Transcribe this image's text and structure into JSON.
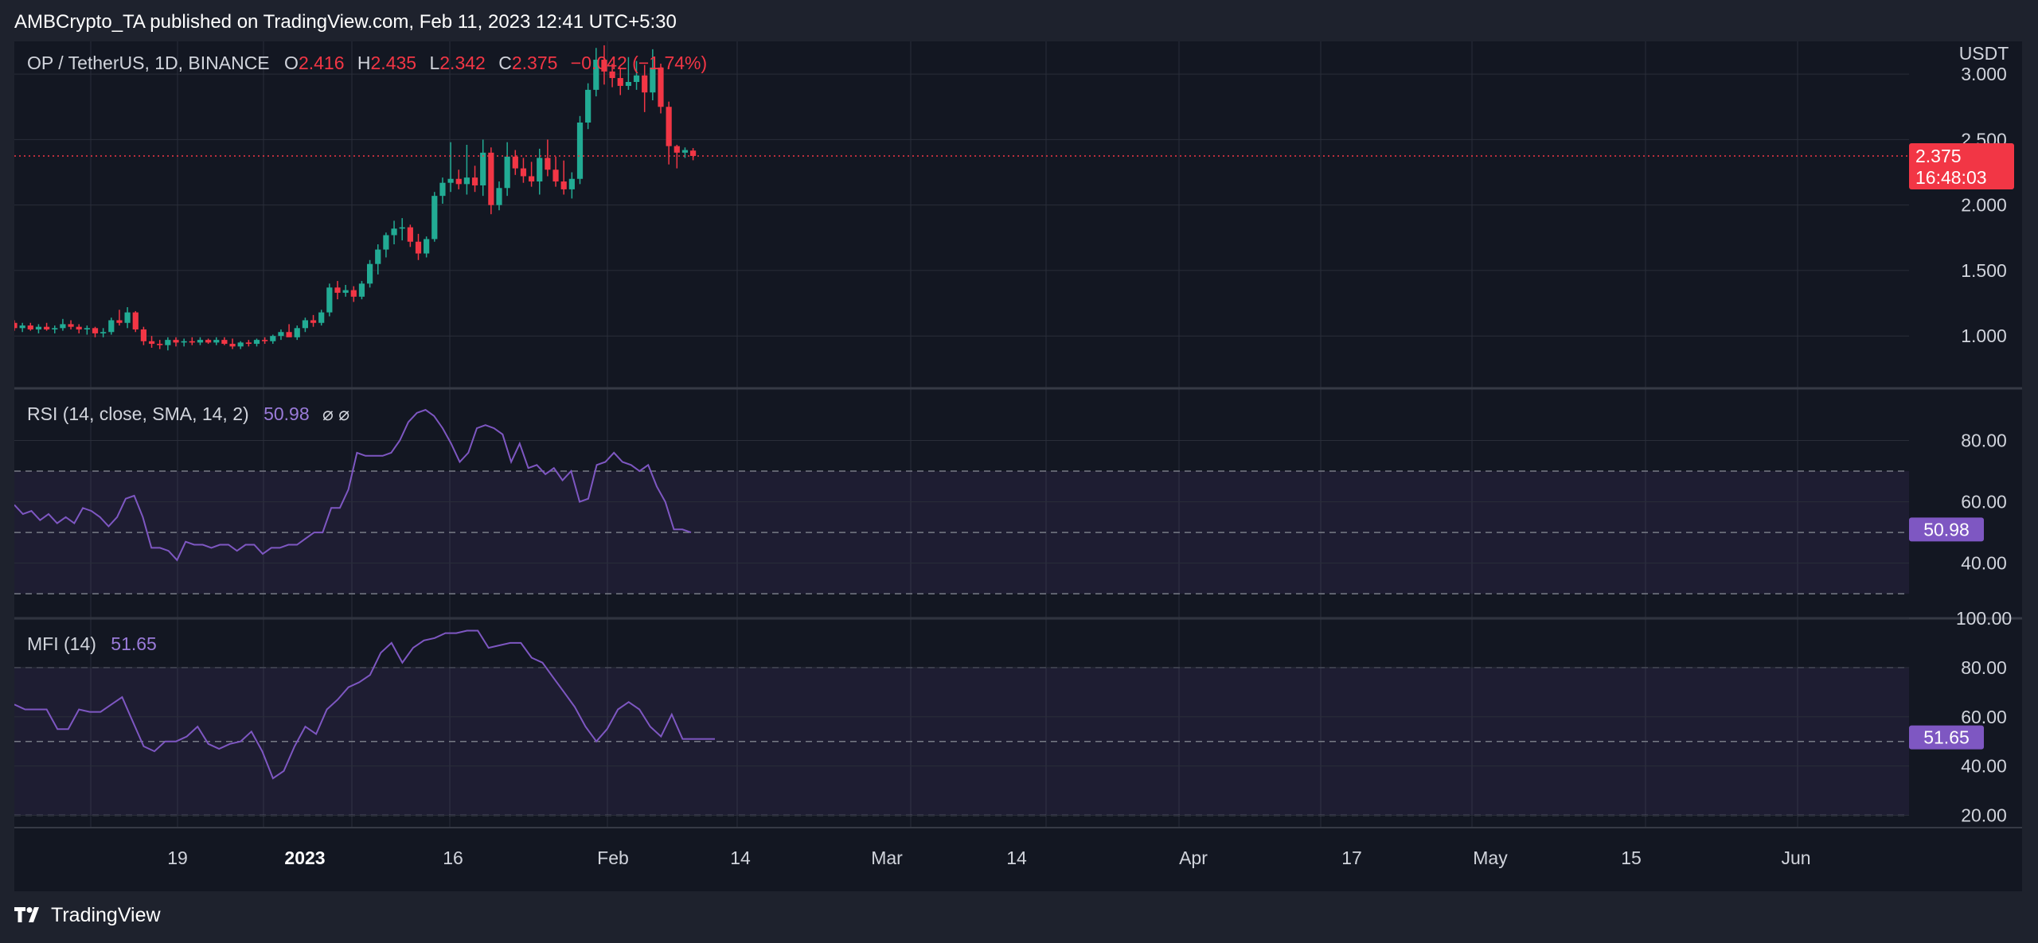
{
  "header": {
    "text": "AMBCrypto_TA published on TradingView.com, Feb 11, 2023 12:41 UTC+5:30"
  },
  "footer": {
    "brand": "TradingView"
  },
  "colors": {
    "up": "#22ab94",
    "down": "#f23645",
    "indicator": "#7e57c2",
    "background": "#131722",
    "grid": "#2a2e39"
  },
  "legend": {
    "symbol": "OP / TetherUS, 1D, BINANCE",
    "o_label": "O",
    "o_value": "2.416",
    "h_label": "H",
    "h_value": "2.435",
    "l_label": "L",
    "l_value": "2.342",
    "c_label": "C",
    "c_value": "2.375",
    "change": "−0.042 (−1.74%)"
  },
  "price_axis": {
    "currency": "USDT",
    "last_price": "2.375",
    "countdown": "16:48:03"
  },
  "rsi_legend": {
    "label": "RSI (14, close, SMA, 14, 2)",
    "value": "50.98",
    "icons": "⌀  ⌀"
  },
  "mfi_legend": {
    "label": "MFI (14)",
    "value": "51.65"
  },
  "chart_data": [
    {
      "type": "candlestick",
      "title": "OP / TetherUS, 1D, BINANCE",
      "ylabel": "USDT",
      "ylim": [
        0.6,
        3.25
      ],
      "yticks": [
        "1.000",
        "1.500",
        "2.000",
        "2.500",
        "3.000"
      ],
      "xticks": [
        "19",
        "2023",
        "16",
        "Feb",
        "14",
        "Mar",
        "14",
        "Apr",
        "17",
        "May",
        "15",
        "Jun"
      ],
      "ohlc": [
        [
          1.1,
          1.12,
          1.04,
          1.06
        ],
        [
          1.06,
          1.1,
          1.03,
          1.08
        ],
        [
          1.08,
          1.1,
          1.04,
          1.05
        ],
        [
          1.05,
          1.09,
          1.02,
          1.07
        ],
        [
          1.07,
          1.1,
          1.04,
          1.05
        ],
        [
          1.05,
          1.08,
          1.02,
          1.06
        ],
        [
          1.06,
          1.13,
          1.04,
          1.09
        ],
        [
          1.09,
          1.12,
          1.05,
          1.07
        ],
        [
          1.07,
          1.09,
          1.02,
          1.05
        ],
        [
          1.05,
          1.08,
          1.01,
          1.06
        ],
        [
          1.06,
          1.07,
          0.99,
          1.02
        ],
        [
          1.02,
          1.06,
          0.99,
          1.03
        ],
        [
          1.03,
          1.14,
          1.01,
          1.12
        ],
        [
          1.12,
          1.2,
          1.08,
          1.1
        ],
        [
          1.1,
          1.22,
          1.06,
          1.18
        ],
        [
          1.18,
          1.19,
          1.03,
          1.05
        ],
        [
          1.05,
          1.07,
          0.93,
          0.96
        ],
        [
          0.96,
          1.0,
          0.91,
          0.94
        ],
        [
          0.94,
          0.97,
          0.9,
          0.93
        ],
        [
          0.93,
          0.99,
          0.89,
          0.97
        ],
        [
          0.97,
          0.99,
          0.92,
          0.95
        ],
        [
          0.95,
          0.98,
          0.92,
          0.96
        ],
        [
          0.96,
          0.99,
          0.93,
          0.95
        ],
        [
          0.95,
          0.99,
          0.93,
          0.97
        ],
        [
          0.97,
          0.98,
          0.94,
          0.95
        ],
        [
          0.95,
          0.99,
          0.93,
          0.97
        ],
        [
          0.97,
          0.99,
          0.93,
          0.94
        ],
        [
          0.94,
          0.98,
          0.9,
          0.92
        ],
        [
          0.92,
          0.96,
          0.9,
          0.95
        ],
        [
          0.95,
          0.97,
          0.92,
          0.94
        ],
        [
          0.94,
          0.98,
          0.92,
          0.97
        ],
        [
          0.97,
          0.99,
          0.94,
          0.96
        ],
        [
          0.96,
          1.01,
          0.94,
          1.0
        ],
        [
          1.0,
          1.05,
          0.97,
          1.03
        ],
        [
          1.03,
          1.09,
          1.0,
          0.99
        ],
        [
          0.99,
          1.08,
          0.97,
          1.06
        ],
        [
          1.06,
          1.14,
          1.03,
          1.12
        ],
        [
          1.12,
          1.16,
          1.07,
          1.1
        ],
        [
          1.1,
          1.2,
          1.08,
          1.18
        ],
        [
          1.18,
          1.4,
          1.15,
          1.37
        ],
        [
          1.37,
          1.42,
          1.28,
          1.33
        ],
        [
          1.33,
          1.39,
          1.3,
          1.35
        ],
        [
          1.35,
          1.38,
          1.26,
          1.3
        ],
        [
          1.3,
          1.42,
          1.28,
          1.4
        ],
        [
          1.4,
          1.58,
          1.37,
          1.55
        ],
        [
          1.55,
          1.7,
          1.47,
          1.66
        ],
        [
          1.66,
          1.79,
          1.6,
          1.77
        ],
        [
          1.77,
          1.88,
          1.7,
          1.82
        ],
        [
          1.82,
          1.9,
          1.73,
          1.83
        ],
        [
          1.83,
          1.85,
          1.68,
          1.72
        ],
        [
          1.72,
          1.78,
          1.58,
          1.63
        ],
        [
          1.63,
          1.76,
          1.6,
          1.74
        ],
        [
          1.74,
          2.1,
          1.72,
          2.07
        ],
        [
          2.07,
          2.21,
          2.01,
          2.17
        ],
        [
          2.17,
          2.48,
          2.1,
          2.2
        ],
        [
          2.2,
          2.27,
          2.12,
          2.16
        ],
        [
          2.16,
          2.46,
          2.08,
          2.21
        ],
        [
          2.21,
          2.3,
          2.1,
          2.15
        ],
        [
          2.15,
          2.5,
          2.07,
          2.4
        ],
        [
          2.4,
          2.44,
          1.93,
          2.0
        ],
        [
          2.0,
          2.18,
          1.96,
          2.13
        ],
        [
          2.13,
          2.48,
          2.07,
          2.37
        ],
        [
          2.37,
          2.42,
          2.23,
          2.28
        ],
        [
          2.28,
          2.36,
          2.17,
          2.22
        ],
        [
          2.22,
          2.33,
          2.14,
          2.18
        ],
        [
          2.18,
          2.43,
          2.08,
          2.36
        ],
        [
          2.36,
          2.5,
          2.22,
          2.27
        ],
        [
          2.27,
          2.37,
          2.14,
          2.18
        ],
        [
          2.18,
          2.34,
          2.08,
          2.12
        ],
        [
          2.12,
          2.25,
          2.05,
          2.2
        ],
        [
          2.2,
          2.68,
          2.16,
          2.63
        ],
        [
          2.63,
          2.93,
          2.58,
          2.88
        ],
        [
          2.88,
          3.2,
          2.83,
          3.11
        ],
        [
          3.11,
          3.22,
          2.92,
          3.02
        ],
        [
          3.02,
          3.08,
          2.9,
          2.97
        ],
        [
          2.97,
          3.05,
          2.84,
          2.91
        ],
        [
          2.91,
          3.13,
          2.88,
          2.94
        ],
        [
          2.94,
          3.1,
          2.88,
          2.99
        ],
        [
          2.99,
          3.07,
          2.71,
          2.86
        ],
        [
          2.86,
          3.19,
          2.8,
          3.05
        ],
        [
          3.05,
          3.08,
          2.7,
          2.75
        ],
        [
          2.75,
          2.79,
          2.31,
          2.45
        ],
        [
          2.45,
          2.46,
          2.28,
          2.4
        ],
        [
          2.4,
          2.44,
          2.36,
          2.42
        ],
        [
          2.416,
          2.435,
          2.342,
          2.375
        ]
      ]
    },
    {
      "type": "line",
      "title": "RSI (14, close, SMA, 14, 2)",
      "ylim": [
        22,
        97
      ],
      "yticks": [
        "40.00",
        "60.00",
        "80.00"
      ],
      "bands": [
        30,
        50,
        70
      ],
      "last": "50.98",
      "values": [
        59,
        56,
        57,
        54,
        56,
        53,
        55,
        53,
        58,
        57,
        55,
        52,
        55,
        61,
        62,
        55,
        45,
        45,
        44,
        41,
        47,
        46,
        46,
        45,
        46,
        46,
        44,
        46,
        46,
        43,
        45,
        45,
        46,
        46,
        48,
        50,
        50,
        58,
        58,
        64,
        76,
        75,
        75,
        75,
        76,
        80,
        86,
        89,
        90,
        88,
        84,
        79,
        73,
        76,
        84,
        85,
        84,
        82,
        73,
        79,
        71,
        72,
        69,
        71,
        67,
        70,
        60,
        61,
        72,
        73,
        76,
        73,
        72,
        70,
        72,
        65,
        60,
        51,
        51,
        50
      ]
    },
    {
      "type": "line",
      "title": "MFI (14)",
      "ylim": [
        15,
        100
      ],
      "yticks": [
        "20.00",
        "40.00",
        "60.00",
        "80.00",
        "100.00"
      ],
      "bands": [
        20,
        50,
        80
      ],
      "last": "51.65",
      "values": [
        65,
        63,
        63,
        63,
        55,
        55,
        63,
        62,
        62,
        65,
        68,
        58,
        48,
        46,
        50,
        50,
        52,
        56,
        49,
        47,
        49,
        50,
        54,
        46,
        35,
        38,
        48,
        56,
        53,
        63,
        67,
        72,
        74,
        77,
        86,
        90,
        82,
        88,
        91,
        92,
        94,
        94,
        95,
        95,
        88,
        89,
        90,
        90,
        84,
        82,
        76,
        70,
        64,
        56,
        50,
        55,
        63,
        66,
        63,
        56,
        52,
        61,
        51,
        51,
        51,
        51
      ]
    }
  ]
}
